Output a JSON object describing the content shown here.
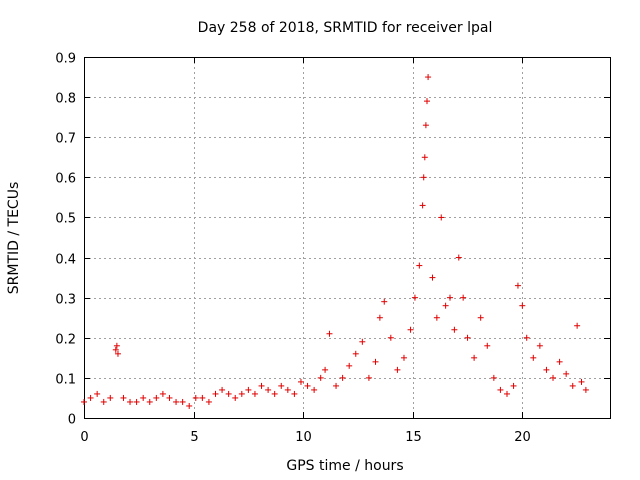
{
  "chart_data": {
    "type": "scatter",
    "title": "Day 258 of 2018, SRMTID for receiver lpal",
    "xlabel": "GPS time / hours",
    "ylabel": "SRMTID / TECUs",
    "xlim": [
      0,
      24
    ],
    "ylim": [
      0,
      0.9
    ],
    "xticks": [
      0,
      5,
      10,
      15,
      20
    ],
    "xtick_labels": [
      "0",
      "5",
      "10",
      "15",
      "20"
    ],
    "yticks": [
      0,
      0.1,
      0.2,
      0.3,
      0.4,
      0.5,
      0.6,
      0.7,
      0.8,
      0.9
    ],
    "ytick_labels": [
      "0",
      "0.1",
      "0.2",
      "0.3",
      "0.4",
      "0.5",
      "0.6",
      "0.7",
      "0.8",
      "0.9"
    ],
    "grid": true,
    "marker": "+",
    "color": "#e00000",
    "series": [
      {
        "name": "lpal",
        "x": [
          0.0,
          0.3,
          0.6,
          0.9,
          1.2,
          1.45,
          1.5,
          1.55,
          1.8,
          2.1,
          2.4,
          2.7,
          3.0,
          3.3,
          3.6,
          3.9,
          4.2,
          4.5,
          4.8,
          5.1,
          5.4,
          5.7,
          6.0,
          6.3,
          6.6,
          6.9,
          7.2,
          7.5,
          7.8,
          8.1,
          8.4,
          8.7,
          9.0,
          9.3,
          9.6,
          9.9,
          10.2,
          10.5,
          10.8,
          11.0,
          11.2,
          11.5,
          11.8,
          12.1,
          12.4,
          12.7,
          13.0,
          13.3,
          13.5,
          13.7,
          14.0,
          14.3,
          14.6,
          14.9,
          15.1,
          15.3,
          15.45,
          15.5,
          15.55,
          15.6,
          15.65,
          15.7,
          15.9,
          16.1,
          16.3,
          16.5,
          16.7,
          16.9,
          17.1,
          17.3,
          17.5,
          17.8,
          18.1,
          18.4,
          18.7,
          19.0,
          19.3,
          19.6,
          19.8,
          20.0,
          20.2,
          20.5,
          20.8,
          21.1,
          21.4,
          21.7,
          22.0,
          22.3,
          22.5,
          22.7,
          22.9
        ],
        "y": [
          0.04,
          0.05,
          0.06,
          0.04,
          0.05,
          0.17,
          0.18,
          0.16,
          0.05,
          0.04,
          0.04,
          0.05,
          0.04,
          0.05,
          0.06,
          0.05,
          0.04,
          0.04,
          0.03,
          0.05,
          0.05,
          0.04,
          0.06,
          0.07,
          0.06,
          0.05,
          0.06,
          0.07,
          0.06,
          0.08,
          0.07,
          0.06,
          0.08,
          0.07,
          0.06,
          0.09,
          0.08,
          0.07,
          0.1,
          0.12,
          0.21,
          0.08,
          0.1,
          0.13,
          0.16,
          0.19,
          0.1,
          0.14,
          0.25,
          0.29,
          0.2,
          0.12,
          0.15,
          0.22,
          0.3,
          0.38,
          0.53,
          0.6,
          0.65,
          0.73,
          0.79,
          0.85,
          0.35,
          0.25,
          0.5,
          0.28,
          0.3,
          0.22,
          0.4,
          0.3,
          0.2,
          0.15,
          0.25,
          0.18,
          0.1,
          0.07,
          0.06,
          0.08,
          0.33,
          0.28,
          0.2,
          0.15,
          0.18,
          0.12,
          0.1,
          0.14,
          0.11,
          0.08,
          0.23,
          0.09,
          0.07
        ]
      }
    ]
  }
}
